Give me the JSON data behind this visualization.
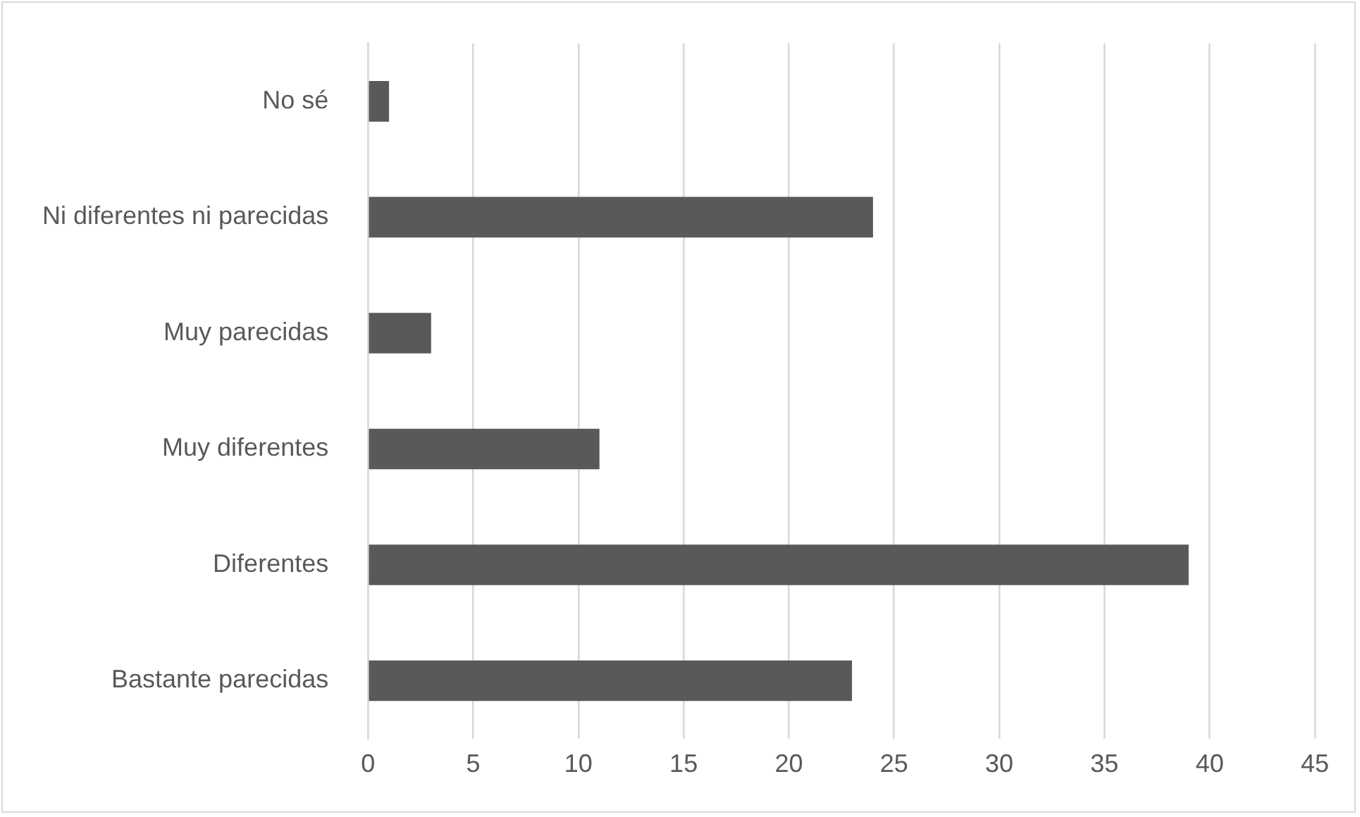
{
  "chart_data": {
    "type": "bar",
    "orientation": "horizontal",
    "categories": [
      "No sé",
      "Ni diferentes ni parecidas",
      "Muy parecidas",
      "Muy diferentes",
      "Diferentes",
      "Bastante parecidas"
    ],
    "values": [
      1,
      24,
      3,
      11,
      39,
      23
    ],
    "color": "#595959",
    "xlim": [
      0,
      45
    ],
    "xticks": [
      0,
      5,
      10,
      15,
      20,
      25,
      30,
      35,
      40,
      45
    ],
    "grid": "x",
    "legend": false
  }
}
